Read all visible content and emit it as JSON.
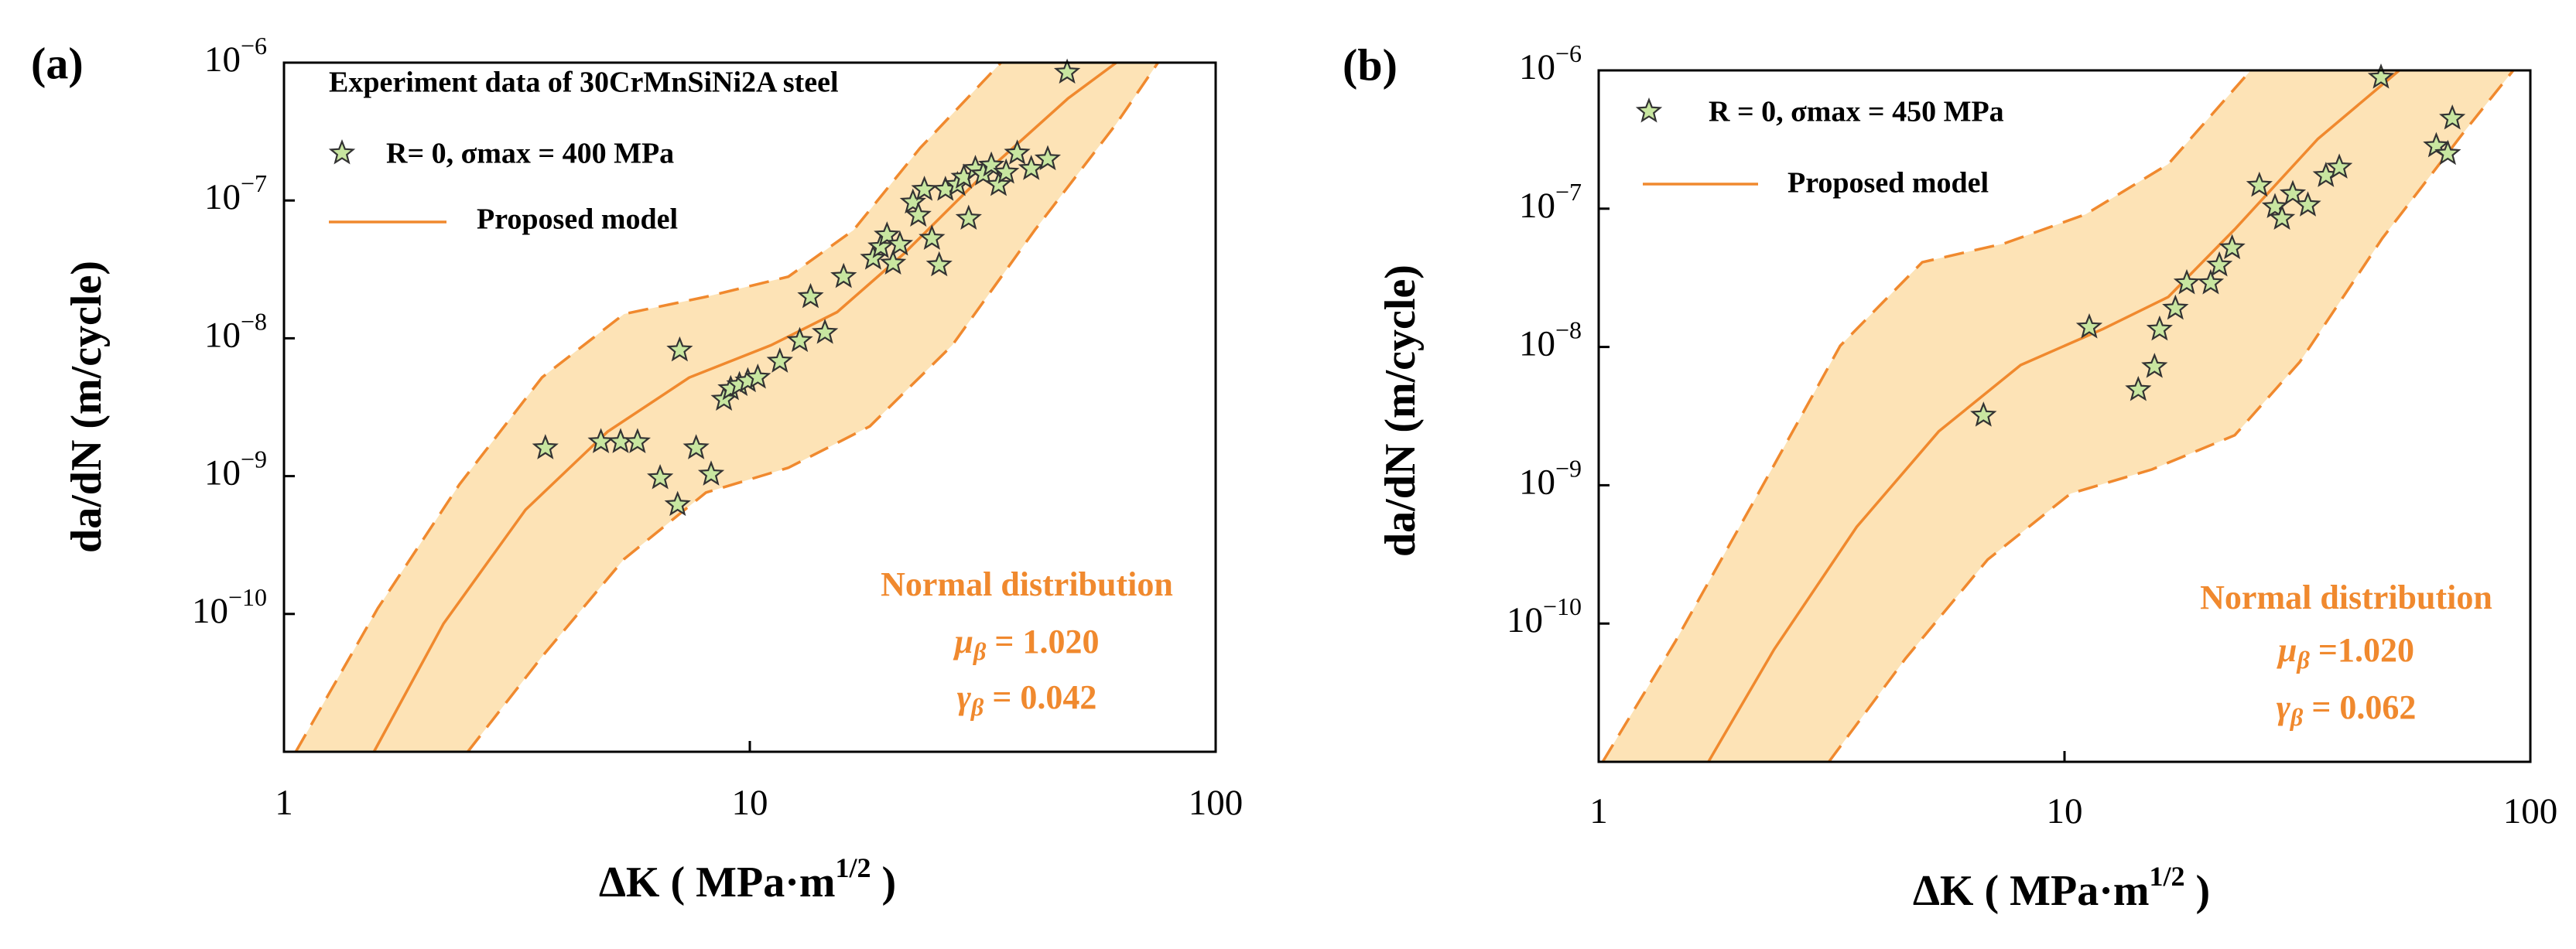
{
  "chart_data": [
    {
      "type": "scatter",
      "panel_label": "(a)",
      "title": "Experiment data of 30CrMnSiNi2A steel",
      "x_label": {
        "text": "ΔK ( MPa·m",
        "sup": "1/2",
        "end": " )"
      },
      "y_label": "da/dN (m/cycle)",
      "xlim": [
        1,
        100
      ],
      "ylim": [
        1e-11,
        1e-06
      ],
      "log_x": true,
      "log_y": true,
      "xticks": [
        1,
        10,
        100
      ],
      "yticks": [
        {
          "value": 1e-06,
          "label": "10",
          "exp": "−6"
        },
        {
          "value": 1e-07,
          "label": "10",
          "exp": "−7"
        },
        {
          "value": 1e-08,
          "label": "10",
          "exp": "−8"
        },
        {
          "value": 1e-09,
          "label": "10",
          "exp": "−9"
        },
        {
          "value": 1e-10,
          "label": "10",
          "exp": "−10"
        }
      ],
      "series": [
        {
          "name": "R= 0, σmax = 400 MPa",
          "type": "scatter",
          "color": "#c8e6a0",
          "x": [
            3.64,
            4.79,
            5.28,
            5.74,
            6.42,
            7.07,
            7.0,
            7.67,
            8.26,
            8.8,
            9.1,
            9.5,
            9.9,
            10.4,
            11.6,
            12.8,
            13.5,
            14.5,
            15.9,
            18.4,
            19.1,
            19.7,
            20.3,
            21.0,
            22.4,
            23.0,
            23.7,
            24.6,
            25.5,
            26.3,
            27.9,
            28.8,
            29.5,
            30.5,
            31.7,
            33.0,
            34.2,
            35.5,
            37.5,
            40.2,
            43.6,
            48.0
          ],
          "values": [
            1.6e-09,
            1.77e-09,
            1.77e-09,
            1.77e-09,
            9.7e-10,
            8.2e-09,
            6.2e-10,
            1.6e-09,
            1.03e-09,
            3.6e-09,
            4.3e-09,
            4.6e-09,
            4.9e-09,
            5.2e-09,
            6.8e-09,
            9.6e-09,
            2e-08,
            1.1e-08,
            2.8e-08,
            3.8e-08,
            4.6e-08,
            5.6e-08,
            3.5e-08,
            4.8e-08,
            9.7e-08,
            7.8e-08,
            1.2e-07,
            5.3e-08,
            3.4e-08,
            1.2e-07,
            1.3e-07,
            1.47e-07,
            7.4e-08,
            1.7e-07,
            1.55e-07,
            1.8e-07,
            1.3e-07,
            1.6e-07,
            2.2e-07,
            1.7e-07,
            2e-07,
            8.5e-07
          ]
        },
        {
          "name": "Proposed model",
          "type": "line",
          "color": "#f0892e",
          "x": [
            1.56,
            2.2,
            3.3,
            4.95,
            7.42,
            11.1,
            15.4,
            21.4,
            32.1,
            48.2,
            61.2
          ],
          "values": [
            1e-11,
            8.5e-11,
            5.7e-10,
            2.1e-09,
            5.2e-09,
            8.9e-09,
            1.55e-08,
            4.1e-08,
            1.6e-07,
            5.5e-07,
            1e-06
          ]
        }
      ],
      "band": {
        "color": "#fde3b6",
        "upper": {
          "x": [
            1.06,
            1.59,
            2.38,
            3.58,
            5.37,
            8.05,
            12.1,
            16.7,
            23.2,
            34.6
          ],
          "values": [
            1e-11,
            1.1e-10,
            8.7e-10,
            5.2e-09,
            1.5e-08,
            2e-08,
            2.8e-08,
            6.1e-08,
            2.4e-07,
            1e-06
          ]
        },
        "lower": {
          "x": [
            2.48,
            3.58,
            5.37,
            8.05,
            12.1,
            18.1,
            27.2,
            40.9,
            61.2,
            75.2
          ],
          "values": [
            1e-11,
            4.9e-11,
            2.5e-10,
            7.6e-10,
            1.15e-09,
            2.3e-09,
            8.9e-09,
            6.1e-08,
            3.6e-07,
            1e-06
          ]
        }
      },
      "annotation": {
        "title": "Normal distribution",
        "mu": {
          "symbol": "μ",
          "sub": "β",
          "text": " = 1.020"
        },
        "gamma": {
          "symbol": "γ",
          "sub": "β",
          "text": " = 0.042"
        }
      }
    },
    {
      "type": "scatter",
      "panel_label": "(b)",
      "x_label": {
        "text": "ΔK ( MPa·m",
        "sup": "1/2",
        "end": " )"
      },
      "y_label": "da/dN (m/cycle)",
      "xlim": [
        1,
        100
      ],
      "ylim": [
        1e-11,
        1e-06
      ],
      "log_x": true,
      "log_y": true,
      "xticks": [
        1,
        10,
        100
      ],
      "yticks": [
        {
          "value": 1e-06,
          "label": "10",
          "exp": "−6"
        },
        {
          "value": 1e-07,
          "label": "10",
          "exp": "−7"
        },
        {
          "value": 1e-08,
          "label": "10",
          "exp": "−8"
        },
        {
          "value": 1e-09,
          "label": "10",
          "exp": "−9"
        },
        {
          "value": 1e-10,
          "label": "10",
          "exp": "−10"
        }
      ],
      "series": [
        {
          "name": "R = 0, σmax = 450 MPa",
          "type": "scatter",
          "color": "#c8e6a0",
          "x": [
            6.7,
            11.3,
            14.4,
            15.6,
            16.0,
            17.3,
            18.3,
            20.6,
            21.5,
            22.9,
            26.2,
            28.3,
            29.3,
            30.9,
            33.3,
            36.4,
            38.9,
            47.8,
            62.8,
            66.5,
            68.0
          ],
          "values": [
            3.2e-09,
            1.39e-08,
            4.9e-09,
            7.2e-09,
            1.34e-08,
            1.9e-08,
            2.9e-08,
            2.9e-08,
            3.9e-08,
            5.2e-08,
            1.47e-07,
            1.03e-07,
            8.5e-08,
            1.28e-07,
            1.06e-07,
            1.73e-07,
            1.99e-07,
            8.9e-07,
            2.84e-07,
            2.5e-07,
            4.5e-07
          ]
        },
        {
          "name": "Proposed model",
          "type": "line",
          "color": "#f0892e",
          "x": [
            1.72,
            2.38,
            3.58,
            5.37,
            8.05,
            12.1,
            16.7,
            23.2,
            35.0,
            52.3
          ],
          "values": [
            1e-11,
            6.5e-11,
            5e-10,
            2.45e-09,
            7.4e-09,
            1.35e-08,
            2.3e-08,
            7.1e-08,
            3.2e-07,
            1e-06
          ]
        }
      ],
      "band": {
        "color": "#fde3b6",
        "upper": {
          "x": [
            1.02,
            1.46,
            2.2,
            3.3,
            4.95,
            7.42,
            11.1,
            16.7,
            25.1
          ],
          "values": [
            1e-11,
            7.4e-11,
            8.7e-10,
            1.02e-08,
            4.1e-08,
            5.6e-08,
            9.1e-08,
            2.1e-07,
            1e-06
          ]
        },
        "lower": {
          "x": [
            3.12,
            4.56,
            6.84,
            10.3,
            15.4,
            23.2,
            32.0,
            48.1,
            72.1,
            91.9
          ],
          "values": [
            1e-11,
            5.6e-11,
            2.9e-10,
            8.7e-10,
            1.3e-09,
            2.3e-09,
            7.8e-09,
            6.1e-08,
            3.6e-07,
            1e-06
          ]
        }
      },
      "annotation": {
        "title": "Normal distribution",
        "mu": {
          "symbol": "μ",
          "sub": "β",
          "text": " =1.020"
        },
        "gamma": {
          "symbol": "γ",
          "sub": "β",
          "text": " = 0.062"
        }
      }
    }
  ]
}
